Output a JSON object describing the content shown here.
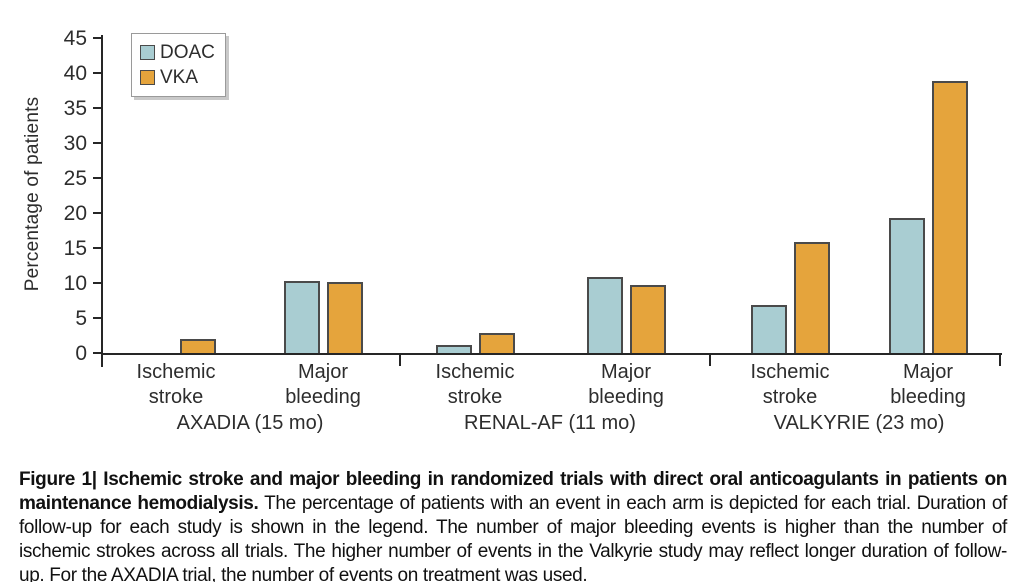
{
  "figure": {
    "caption_bold": "Figure 1| Ischemic stroke and major bleeding in randomized trials with direct oral anticoagulants in patients on maintenance hemodialysis.",
    "caption_rest": "The percentage of patients with an event in each arm is depicted for each trial. Duration of follow-up for each study is shown in the legend. The number of major bleeding events is higher than the number of ischemic strokes across all trials. The higher number of events in the Valkyrie study may reflect longer duration of follow-up. For the AXADIA trial, the number of events on treatment was used."
  },
  "chart_data": {
    "type": "bar",
    "title": "",
    "xlabel": "",
    "ylabel": "Percentage of patients",
    "ylim": [
      0,
      45
    ],
    "ytick_step": 5,
    "grid": false,
    "legend_position": "top-left",
    "series": [
      {
        "name": "DOAC",
        "color": "#a9cdd2"
      },
      {
        "name": "VKA",
        "color": "#e5a43c"
      }
    ],
    "groups": [
      {
        "label": "AXADIA (15 mo)",
        "categories": [
          {
            "label": "Ischemic stroke",
            "values": [
              0,
              2.0
            ]
          },
          {
            "label": "Major bleeding",
            "values": [
              10.3,
              10.1
            ]
          }
        ]
      },
      {
        "label": "RENAL-AF (11 mo)",
        "categories": [
          {
            "label": "Ischemic stroke",
            "values": [
              1.1,
              2.8
            ]
          },
          {
            "label": "Major bleeding",
            "values": [
              10.9,
              9.7
            ]
          }
        ]
      },
      {
        "label": "VALKYRIE (23 mo)",
        "categories": [
          {
            "label": "Ischemic stroke",
            "values": [
              6.8,
              15.9
            ]
          },
          {
            "label": "Major bleeding",
            "values": [
              19.3,
              38.8
            ]
          }
        ]
      }
    ]
  }
}
